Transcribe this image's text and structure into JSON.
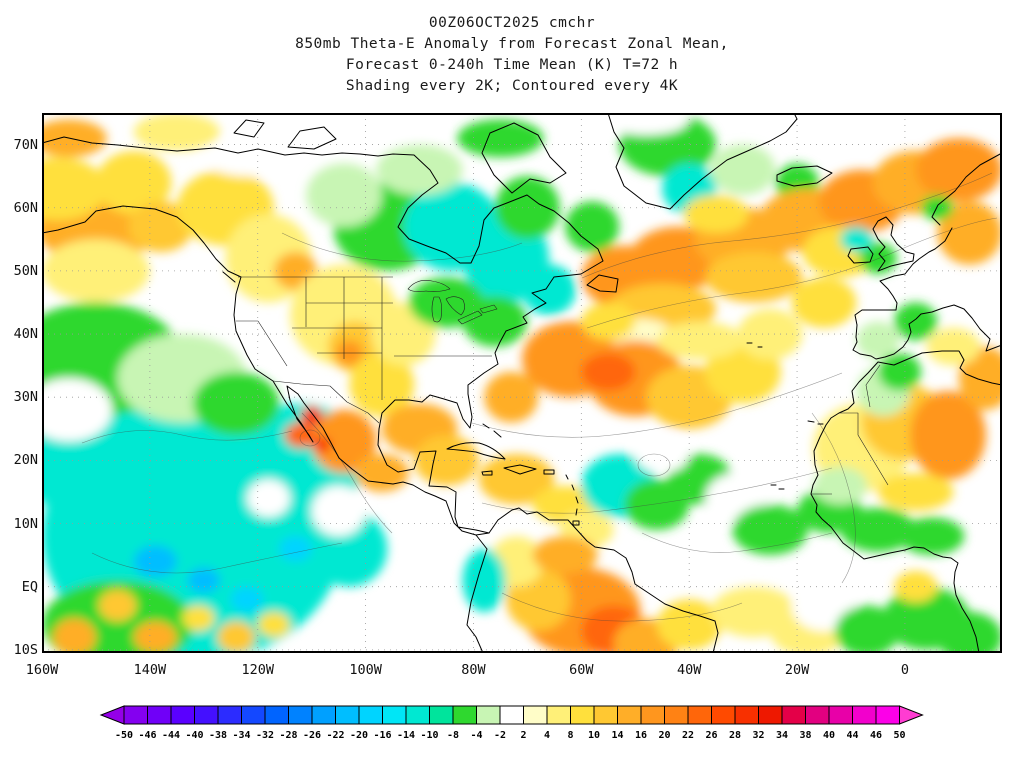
{
  "title": {
    "line1": "00Z06OCT2025 cmchr",
    "line2": "850mb Theta-E Anomaly from Forecast Zonal Mean,",
    "line3": "Forecast 0-240h Time Mean (K) T=72 h",
    "line4": "Shading every 2K; Contoured every 4K"
  },
  "chart_data": {
    "type": "heatmap",
    "title": "850mb Theta-E Anomaly from Forecast Zonal Mean",
    "subtitle": "Forecast 0-240h Time Mean (K) T=72 h",
    "run": "00Z06OCT2025",
    "model": "cmchr",
    "units": "K",
    "shading_interval_K": 2,
    "contour_interval_K": 4,
    "lon_range": [
      -160,
      18
    ],
    "lat_range": [
      -10.5,
      75
    ],
    "lon_ticks": [
      {
        "label": "160W",
        "deg": -160
      },
      {
        "label": "140W",
        "deg": -140
      },
      {
        "label": "120W",
        "deg": -120
      },
      {
        "label": "100W",
        "deg": -100
      },
      {
        "label": "80W",
        "deg": -80
      },
      {
        "label": "60W",
        "deg": -60
      },
      {
        "label": "40W",
        "deg": -40
      },
      {
        "label": "20W",
        "deg": -20
      },
      {
        "label": "0",
        "deg": 0
      }
    ],
    "lat_ticks": [
      {
        "label": "70N",
        "deg": 70
      },
      {
        "label": "60N",
        "deg": 60
      },
      {
        "label": "50N",
        "deg": 50
      },
      {
        "label": "40N",
        "deg": 40
      },
      {
        "label": "30N",
        "deg": 30
      },
      {
        "label": "20N",
        "deg": 20
      },
      {
        "label": "10N",
        "deg": 10
      },
      {
        "label": "EQ",
        "deg": 0
      },
      {
        "label": "10S",
        "deg": -10
      }
    ],
    "levels": [
      -50,
      -46,
      -44,
      -40,
      -38,
      -34,
      -32,
      -28,
      -26,
      -22,
      -20,
      -16,
      -14,
      -10,
      -8,
      -4,
      -2,
      2,
      4,
      8,
      10,
      14,
      16,
      20,
      22,
      26,
      28,
      32,
      34,
      38,
      40,
      44,
      46,
      50
    ],
    "palette": [
      "#9400E8",
      "#8400F0",
      "#7000F8",
      "#5A00FF",
      "#4410FF",
      "#2C2CFF",
      "#1448FF",
      "#0064FF",
      "#0082FF",
      "#00A0FF",
      "#00BEFF",
      "#00D4FF",
      "#00E6F6",
      "#00E8D2",
      "#00E49C",
      "#2FD82F",
      "#C8F5B4",
      "#FFFFFF",
      "#FFFDC8",
      "#FFF078",
      "#FFE03C",
      "#FFC832",
      "#FFAE28",
      "#FF961E",
      "#FF8214",
      "#FF660A",
      "#FF4A00",
      "#F83000",
      "#EE1800",
      "#E40048",
      "#E20080",
      "#E800A8",
      "#F200CC",
      "#FC00E8",
      "#FF3CD2"
    ],
    "field_blobs_format": [
      "lon_deg",
      "lat_deg",
      "radius_lon_deg",
      "radius_lat_deg",
      "theta_e_anomaly_K"
    ],
    "field_blobs": [
      [
        -132,
        8,
        28,
        20,
        -11
      ],
      [
        -148,
        20,
        16,
        10,
        -11
      ],
      [
        -112,
        20,
        12,
        9,
        -11
      ],
      [
        -103,
        6,
        7,
        6,
        -11
      ],
      [
        -150,
        36,
        16,
        9,
        -6
      ],
      [
        -134,
        33,
        12,
        7,
        -3
      ],
      [
        -155,
        28,
        8,
        5,
        0
      ],
      [
        -124,
        29,
        8,
        5,
        -6
      ],
      [
        -146,
        -6,
        14,
        7,
        -6
      ],
      [
        -139,
        4,
        4,
        2.5,
        -21
      ],
      [
        -130,
        1,
        3,
        2,
        -21
      ],
      [
        -122,
        -2,
        3,
        2,
        -17
      ],
      [
        -113,
        6,
        3,
        2,
        -17
      ],
      [
        -118,
        14,
        4,
        3,
        0
      ],
      [
        -105,
        12,
        5,
        4,
        0
      ],
      [
        -154,
        -8,
        4,
        3,
        15
      ],
      [
        -146,
        -3,
        3.5,
        2.5,
        12
      ],
      [
        -139,
        -8,
        4,
        2.5,
        15
      ],
      [
        -131,
        -5,
        3,
        2,
        9
      ],
      [
        -124,
        -8,
        3.5,
        2.5,
        12
      ],
      [
        -117,
        -6,
        3,
        2,
        9
      ],
      [
        -150,
        57,
        11,
        6,
        15
      ],
      [
        -157,
        63,
        9,
        5,
        9
      ],
      [
        -143,
        64,
        7,
        5,
        9
      ],
      [
        -150,
        50,
        10,
        5,
        5
      ],
      [
        -155,
        71,
        7,
        3,
        15
      ],
      [
        -138,
        57,
        6,
        4,
        12
      ],
      [
        -126,
        60,
        9,
        6,
        9
      ],
      [
        -118,
        52,
        8,
        7,
        7
      ],
      [
        -122,
        68,
        8,
        3,
        0
      ],
      [
        -113,
        50,
        4,
        3,
        15
      ],
      [
        -135,
        72,
        8,
        3,
        7
      ],
      [
        -104,
        43,
        10,
        8,
        7
      ],
      [
        -102,
        38,
        5,
        4,
        12
      ],
      [
        -103,
        37,
        2.5,
        2,
        18
      ],
      [
        -97,
        32,
        6,
        5,
        9
      ],
      [
        -93,
        40,
        6,
        5,
        5
      ],
      [
        -96,
        57,
        10,
        7,
        -6
      ],
      [
        -84,
        57,
        9,
        7,
        -11
      ],
      [
        -74,
        52,
        8,
        7,
        -11
      ],
      [
        -85,
        45,
        7,
        4,
        -6
      ],
      [
        -76,
        42,
        6,
        4,
        -6
      ],
      [
        -66,
        47,
        5,
        4,
        -11
      ],
      [
        -90,
        66,
        8,
        4,
        -3
      ],
      [
        -104,
        62,
        7,
        5,
        -3
      ],
      [
        -70,
        60,
        6,
        5,
        -6
      ],
      [
        -58,
        57,
        5,
        4,
        -6
      ],
      [
        -100,
        73,
        14,
        3,
        0
      ],
      [
        -75,
        71,
        8,
        3,
        -6
      ],
      [
        -44,
        70,
        9,
        5,
        -6
      ],
      [
        -40,
        63,
        5,
        4,
        -11
      ],
      [
        -48,
        74,
        8,
        2.5,
        0
      ],
      [
        -30,
        66,
        6,
        4,
        -3
      ],
      [
        -20,
        64,
        4,
        3,
        -6
      ],
      [
        -52,
        49,
        8,
        5,
        18
      ],
      [
        -42,
        52,
        9,
        5,
        18
      ],
      [
        -30,
        55,
        9,
        5,
        15
      ],
      [
        -18,
        58,
        9,
        5,
        15
      ],
      [
        -8,
        61,
        8,
        5,
        18
      ],
      [
        2,
        64,
        8,
        5,
        15
      ],
      [
        10,
        66,
        8,
        5,
        18
      ],
      [
        12,
        56,
        6,
        5,
        15
      ],
      [
        -45,
        44,
        10,
        4,
        12
      ],
      [
        -28,
        49,
        9,
        4,
        12
      ],
      [
        -12,
        53,
        7,
        4,
        9
      ],
      [
        -35,
        59,
        6,
        3,
        9
      ],
      [
        -50,
        40,
        7,
        2.5,
        3
      ],
      [
        -62,
        36,
        9,
        6,
        18
      ],
      [
        -50,
        33,
        9,
        6,
        18
      ],
      [
        -55,
        34,
        5,
        3,
        24
      ],
      [
        -40,
        30,
        8,
        5,
        12
      ],
      [
        -30,
        34,
        7,
        5,
        9
      ],
      [
        -73,
        30,
        5,
        4,
        15
      ],
      [
        -38,
        39,
        8,
        3,
        5
      ],
      [
        -90,
        25,
        7,
        4,
        15
      ],
      [
        -104,
        23,
        6,
        5,
        18
      ],
      [
        -110,
        27,
        2,
        1.5,
        30
      ],
      [
        -108,
        22.5,
        1.5,
        1.2,
        30
      ],
      [
        -112,
        24,
        3,
        2,
        24
      ],
      [
        -97,
        18,
        5,
        3,
        15
      ],
      [
        -85,
        20,
        6,
        4,
        12
      ],
      [
        -72,
        17,
        7,
        4,
        12
      ],
      [
        -63,
        13,
        6,
        3,
        9
      ],
      [
        -53,
        16,
        7,
        5,
        -11
      ],
      [
        -46,
        13,
        6,
        4,
        -6
      ],
      [
        -38,
        17,
        6,
        4,
        -6
      ],
      [
        -31,
        14,
        6,
        4,
        0
      ],
      [
        -25,
        9,
        7,
        4,
        -6
      ],
      [
        -45,
        21,
        5,
        3,
        0
      ],
      [
        -59,
        9,
        5,
        3,
        7
      ],
      [
        -60,
        -4,
        11,
        7,
        18
      ],
      [
        -54,
        -7,
        6,
        4,
        24
      ],
      [
        -68,
        -2,
        6,
        5,
        12
      ],
      [
        -72,
        4,
        5,
        4,
        5
      ],
      [
        -78,
        1,
        4,
        5,
        -11
      ],
      [
        -63,
        5,
        6,
        3,
        15
      ],
      [
        -48,
        -9,
        6,
        4,
        15
      ],
      [
        -40,
        -6,
        6,
        4,
        9
      ],
      [
        -28,
        -4,
        8,
        4,
        5
      ],
      [
        -18,
        -7,
        7,
        4,
        7
      ],
      [
        -15,
        -3,
        6,
        4,
        0
      ],
      [
        -7,
        -7,
        6,
        4,
        -6
      ],
      [
        4,
        -5,
        8,
        5,
        -6
      ],
      [
        12,
        -8,
        6,
        4,
        -6
      ],
      [
        2,
        0,
        4,
        2.5,
        9
      ],
      [
        -8,
        22,
        9,
        7,
        7
      ],
      [
        0,
        26,
        8,
        6,
        12
      ],
      [
        8,
        24,
        7,
        7,
        18
      ],
      [
        15,
        33,
        5,
        5,
        15
      ],
      [
        -14,
        12,
        6,
        3.5,
        -6
      ],
      [
        -5,
        9,
        7,
        3.5,
        -6
      ],
      [
        5,
        8,
        6,
        3,
        -6
      ],
      [
        -12,
        16,
        5,
        3,
        -3
      ],
      [
        2,
        15,
        7,
        3,
        9
      ],
      [
        -4,
        31,
        5,
        4,
        -3
      ],
      [
        -1,
        34,
        4,
        3,
        -6
      ],
      [
        -5,
        39,
        4,
        3,
        -3
      ],
      [
        2,
        42,
        4,
        3,
        -6
      ],
      [
        9,
        38,
        5,
        3,
        5
      ],
      [
        -13,
        35,
        5,
        3,
        0
      ],
      [
        -5,
        52,
        3.5,
        2.5,
        -6
      ],
      [
        -9,
        55,
        3,
        2,
        -11
      ],
      [
        -15,
        45,
        6,
        4,
        9
      ],
      [
        -25,
        40,
        6,
        4,
        5
      ],
      [
        -55,
        42,
        5,
        3,
        9
      ],
      [
        6,
        60,
        3,
        2,
        -6
      ]
    ]
  }
}
